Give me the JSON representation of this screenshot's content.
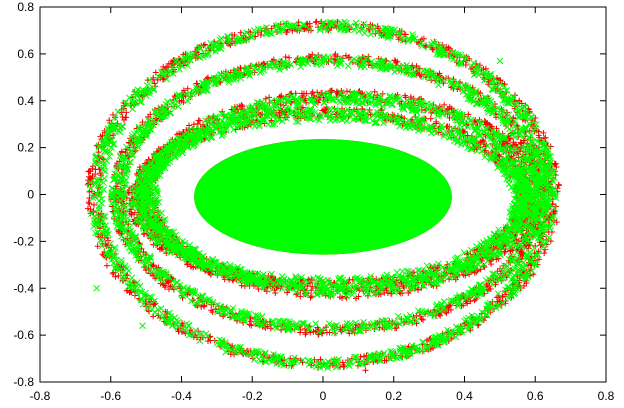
{
  "chart_data": {
    "type": "scatter",
    "title": "",
    "xlabel": "",
    "ylabel": "",
    "xlim": [
      -0.8,
      0.8
    ],
    "ylim": [
      -0.8,
      0.8
    ],
    "x_ticks": [
      "-0.8",
      "-0.6",
      "-0.4",
      "-0.2",
      "0",
      "0.2",
      "0.4",
      "0.6",
      "0.8"
    ],
    "y_ticks": [
      "-0.8",
      "-0.6",
      "-0.4",
      "-0.2",
      "0",
      "0.2",
      "0.4",
      "0.6",
      "0.8"
    ],
    "grid": false,
    "legend": "none",
    "series": [
      {
        "marker": "plus",
        "color": "#ff0000",
        "center": [
          0.0,
          0.0
        ],
        "structure": "concentric elliptical rings around a filled central disc",
        "disc": {
          "rx": 0.36,
          "ry": 0.24,
          "cx": 0.0,
          "cy": -0.01
        },
        "rings": [
          {
            "rx": 0.55,
            "ry": 0.37,
            "cx": 0.02,
            "cy": -0.02,
            "width": 0.05
          },
          {
            "rx": 0.55,
            "ry": 0.42,
            "cx": 0.05,
            "cy": 0.0,
            "width": 0.05
          },
          {
            "rx": 0.6,
            "ry": 0.58,
            "cx": 0.02,
            "cy": 0.0,
            "width": 0.04
          },
          {
            "rx": 0.65,
            "ry": 0.72,
            "cx": 0.0,
            "cy": 0.0,
            "width": 0.04
          }
        ],
        "outliers": [
          [
            -0.48,
            -0.52
          ],
          [
            0.12,
            -0.75
          ]
        ]
      },
      {
        "marker": "cross",
        "color": "#00ff00",
        "center": [
          0.0,
          0.0
        ],
        "structure": "concentric elliptical rings around a filled central disc",
        "disc": {
          "rx": 0.36,
          "ry": 0.24,
          "cx": 0.0,
          "cy": -0.01
        },
        "rings": [
          {
            "rx": 0.54,
            "ry": 0.36,
            "cx": 0.02,
            "cy": -0.02,
            "width": 0.05
          },
          {
            "rx": 0.54,
            "ry": 0.41,
            "cx": 0.05,
            "cy": 0.0,
            "width": 0.05
          },
          {
            "rx": 0.6,
            "ry": 0.57,
            "cx": 0.02,
            "cy": 0.0,
            "width": 0.04
          },
          {
            "rx": 0.64,
            "ry": 0.72,
            "cx": 0.0,
            "cy": 0.0,
            "width": 0.04
          }
        ],
        "outliers": [
          [
            -0.64,
            -0.4
          ],
          [
            -0.51,
            -0.56
          ],
          [
            0.5,
            0.57
          ]
        ]
      }
    ]
  }
}
